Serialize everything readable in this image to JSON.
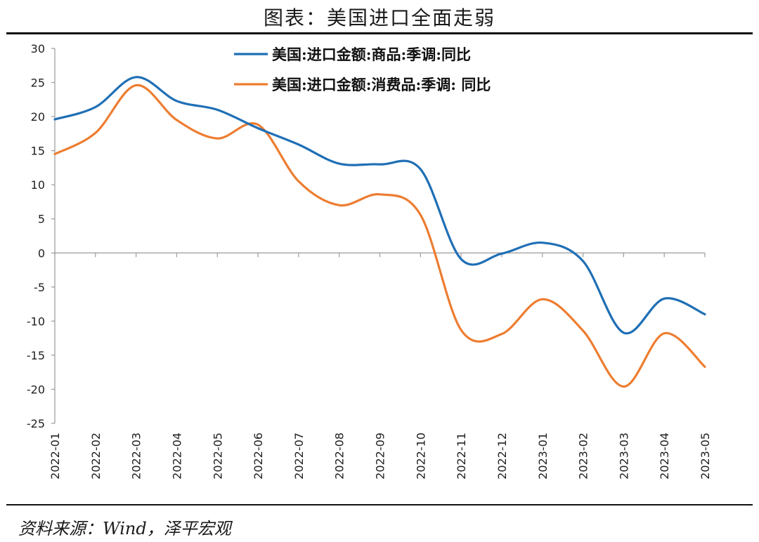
{
  "header": {
    "title": "图表：美国进口全面走弱"
  },
  "footer": {
    "source": "资料来源：Wind，泽平宏观"
  },
  "chart_data": {
    "type": "line",
    "title": "",
    "xlabel": "",
    "ylabel": "",
    "ylim": [
      -25,
      30
    ],
    "yticks": [
      30,
      25,
      20,
      15,
      10,
      5,
      0,
      -5,
      -10,
      -15,
      -20,
      -25
    ],
    "grid": false,
    "legend_position": "top-center",
    "categories": [
      "2022-01",
      "2022-02",
      "2022-03",
      "2022-04",
      "2022-05",
      "2022-06",
      "2022-07",
      "2022-08",
      "2022-09",
      "2022-10",
      "2022-11",
      "2022-12",
      "2023-01",
      "2023-02",
      "2023-03",
      "2023-04",
      "2023-05"
    ],
    "series": [
      {
        "name": "美国:进口金额:商品:季调:同比",
        "color": "#1f6fb5",
        "values": [
          19.6,
          21.4,
          25.8,
          22.3,
          21.0,
          18.3,
          15.9,
          13.1,
          13.0,
          12.3,
          -0.9,
          -0.1,
          1.5,
          -1.2,
          -11.7,
          -6.7,
          -9.0
        ]
      },
      {
        "name": "美国:进口金额:消费品:季调: 同比",
        "color": "#ed7d31",
        "values": [
          14.5,
          17.6,
          24.6,
          19.5,
          16.8,
          18.8,
          10.5,
          7.0,
          8.6,
          5.6,
          -11.3,
          -11.9,
          -6.8,
          -11.4,
          -19.6,
          -11.8,
          -16.7
        ]
      }
    ]
  }
}
